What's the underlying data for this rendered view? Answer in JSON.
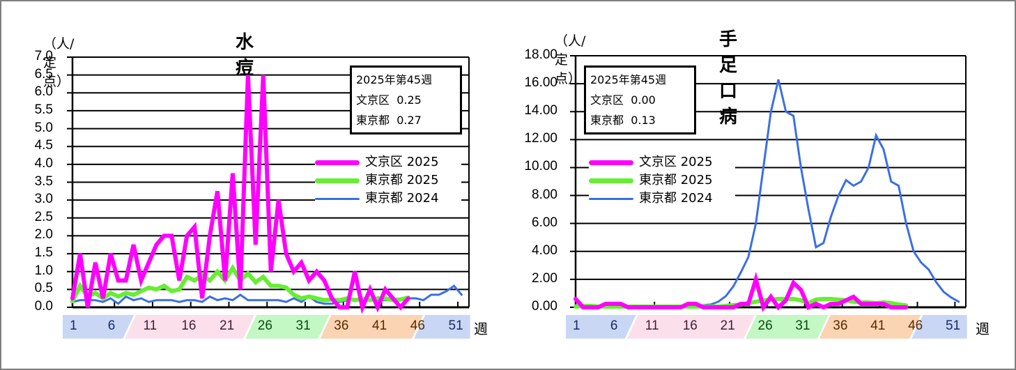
{
  "colors": {
    "bunkyo_2025": "#ff00ff",
    "tokyo_2025": "#66ee33",
    "tokyo_2024": "#3a6ee8",
    "band_winter": "#c9d7f5",
    "band_spring": "#fbe0ec",
    "band_summer": "#c3f7c3",
    "band_autumn": "#fbd4b4"
  },
  "week_axis": {
    "ticks": [
      "1",
      "6",
      "11",
      "16",
      "21",
      "26",
      "31",
      "36",
      "41",
      "46",
      "51"
    ],
    "unit": "週"
  },
  "chart_data": [
    {
      "type": "line",
      "title": "水痘",
      "ylabel": "（人/定点）",
      "xlabel": "週",
      "ylim": [
        0,
        7.0
      ],
      "yticks": [
        "7.0",
        "6.5",
        "6.0",
        "5.5",
        "5.0",
        "4.5",
        "4.0",
        "3.5",
        "3.0",
        "2.5",
        "2.0",
        "1.5",
        "1.0",
        "0.5",
        "0.0"
      ],
      "grid": true,
      "legend_position": "right-middle",
      "info_box": {
        "line1": "2025年第45週",
        "line2_label": "文京区",
        "line2_value": "0.25",
        "line3_label": "東京都",
        "line3_value": "0.27"
      },
      "x": [
        1,
        2,
        3,
        4,
        5,
        6,
        7,
        8,
        9,
        10,
        11,
        12,
        13,
        14,
        15,
        16,
        17,
        18,
        19,
        20,
        21,
        22,
        23,
        24,
        25,
        26,
        27,
        28,
        29,
        30,
        31,
        32,
        33,
        34,
        35,
        36,
        37,
        38,
        39,
        40,
        41,
        42,
        43,
        44,
        45,
        46,
        47,
        48,
        49,
        50,
        51,
        52
      ],
      "series": [
        {
          "name": "文京区 2025",
          "values": [
            0.25,
            1.5,
            0.0,
            1.25,
            0.25,
            1.5,
            0.75,
            0.75,
            1.75,
            0.75,
            1.25,
            1.75,
            2.0,
            2.0,
            0.75,
            2.0,
            2.25,
            0.25,
            2.0,
            3.25,
            0.75,
            3.75,
            0.5,
            6.5,
            1.75,
            6.5,
            1.0,
            3.0,
            1.5,
            1.0,
            1.25,
            0.75,
            1.0,
            0.75,
            0.25,
            0.0,
            0.0,
            1.0,
            0.0,
            0.5,
            0.0,
            0.5,
            0.25,
            0.0,
            0.25
          ]
        },
        {
          "name": "東京都 2025",
          "values": [
            0.17,
            0.6,
            0.3,
            0.4,
            0.25,
            0.4,
            0.3,
            0.4,
            0.35,
            0.45,
            0.55,
            0.5,
            0.6,
            0.45,
            0.5,
            0.85,
            0.75,
            0.9,
            0.75,
            1.0,
            0.75,
            1.1,
            0.75,
            0.95,
            0.7,
            0.85,
            0.6,
            0.6,
            0.55,
            0.35,
            0.25,
            0.3,
            0.25,
            0.2,
            0.22,
            0.2,
            0.25,
            0.2,
            0.23,
            0.2,
            0.25,
            0.25,
            0.2,
            0.22,
            0.27
          ]
        },
        {
          "name": "東京都 2024",
          "values": [
            0.15,
            0.2,
            0.2,
            0.2,
            0.15,
            0.25,
            0.1,
            0.3,
            0.2,
            0.25,
            0.15,
            0.2,
            0.2,
            0.2,
            0.15,
            0.2,
            0.2,
            0.15,
            0.3,
            0.2,
            0.25,
            0.2,
            0.35,
            0.2,
            0.2,
            0.2,
            0.2,
            0.2,
            0.15,
            0.25,
            0.15,
            0.3,
            0.15,
            0.1,
            0.1,
            0.15,
            0.2,
            0.2,
            0.2,
            0.2,
            0.2,
            0.2,
            0.2,
            0.2,
            0.25,
            0.25,
            0.2,
            0.35,
            0.35,
            0.45,
            0.6,
            0.35
          ]
        }
      ]
    },
    {
      "type": "line",
      "title": "手足口病",
      "ylabel": "（人/定点）",
      "xlabel": "週",
      "ylim": [
        0,
        18.0
      ],
      "yticks": [
        "18.00",
        "16.00",
        "14.00",
        "12.00",
        "10.00",
        "8.00",
        "6.00",
        "4.00",
        "2.00",
        "0.00"
      ],
      "grid": true,
      "legend_position": "left-middle",
      "info_box": {
        "line1": "2025年第45週",
        "line2_label": "文京区",
        "line2_value": "0.00",
        "line3_label": "東京都",
        "line3_value": "0.13"
      },
      "x": [
        1,
        2,
        3,
        4,
        5,
        6,
        7,
        8,
        9,
        10,
        11,
        12,
        13,
        14,
        15,
        16,
        17,
        18,
        19,
        20,
        21,
        22,
        23,
        24,
        25,
        26,
        27,
        28,
        29,
        30,
        31,
        32,
        33,
        34,
        35,
        36,
        37,
        38,
        39,
        40,
        41,
        42,
        43,
        44,
        45,
        46,
        47,
        48,
        49,
        50,
        51,
        52
      ],
      "series": [
        {
          "name": "文京区 2025",
          "values": [
            0.6,
            0.0,
            0.0,
            0.0,
            0.25,
            0.25,
            0.25,
            0.0,
            0.0,
            0.0,
            0.0,
            0.0,
            0.0,
            0.0,
            0.0,
            0.25,
            0.25,
            0.0,
            0.0,
            0.0,
            0.0,
            0.0,
            0.25,
            0.25,
            2.0,
            0.0,
            0.75,
            0.0,
            0.5,
            1.75,
            1.25,
            0.0,
            0.25,
            0.0,
            0.25,
            0.25,
            0.5,
            0.75,
            0.25,
            0.25,
            0.25,
            0.25,
            0.0,
            0.0,
            0.0
          ]
        },
        {
          "name": "東京都 2025",
          "values": [
            0.05,
            0.1,
            0.1,
            0.05,
            0.05,
            0.05,
            0.05,
            0.05,
            0.05,
            0.05,
            0.05,
            0.05,
            0.05,
            0.05,
            0.05,
            0.05,
            0.05,
            0.05,
            0.05,
            0.05,
            0.1,
            0.15,
            0.2,
            0.3,
            0.4,
            0.5,
            0.55,
            0.6,
            0.6,
            0.6,
            0.5,
            0.3,
            0.55,
            0.6,
            0.6,
            0.55,
            0.5,
            0.4,
            0.35,
            0.35,
            0.3,
            0.35,
            0.3,
            0.2,
            0.13
          ]
        },
        {
          "name": "東京都 2024",
          "values": [
            0.15,
            0.1,
            0.1,
            0.05,
            0.1,
            0.05,
            0.05,
            0.05,
            0.05,
            0.05,
            0.05,
            0.05,
            0.05,
            0.05,
            0.1,
            0.05,
            0.1,
            0.15,
            0.2,
            0.4,
            0.8,
            1.5,
            2.5,
            3.6,
            6.0,
            10.0,
            14.0,
            16.3,
            14.0,
            13.7,
            10.0,
            7.0,
            4.3,
            4.6,
            6.5,
            8.0,
            9.1,
            8.7,
            9.0,
            10.0,
            12.3,
            11.3,
            9.0,
            8.7,
            6.0,
            4.0,
            3.2,
            2.7,
            1.8,
            1.1,
            0.7,
            0.4
          ]
        }
      ]
    }
  ]
}
